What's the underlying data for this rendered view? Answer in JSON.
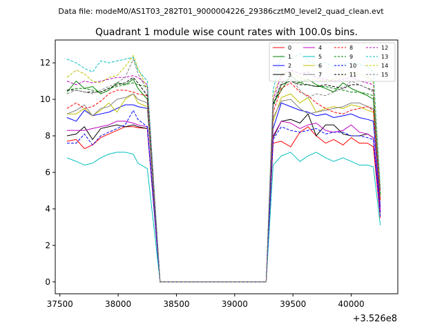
{
  "figure": {
    "suptitle": "Data file: modeM0/AS1T03_282T01_9000004226_29386cztM0_level2_quad_clean.evt"
  },
  "chart_data": {
    "type": "line",
    "title": "Quadrant 1 module wise count rates with 100.0s bins.",
    "xlabel": "",
    "ylabel": "",
    "x_offset_label": "+3.526e8",
    "xlim": [
      37460,
      40400
    ],
    "ylim": [
      -0.65,
      13.25
    ],
    "xticks": [
      37500,
      38000,
      38500,
      39000,
      39500,
      40000
    ],
    "yticks": [
      0,
      2,
      4,
      6,
      8,
      10,
      12
    ],
    "grid": false,
    "legend_position": "top-right",
    "legend_columns": 4,
    "x": [
      37560,
      37640,
      37710,
      37780,
      37850,
      37920,
      37990,
      38060,
      38130,
      38170,
      38250,
      38360,
      38700,
      39000,
      39270,
      39330,
      39400,
      39480,
      39560,
      39630,
      39700,
      39780,
      39850,
      39930,
      40000,
      40070,
      40140,
      40190,
      40250
    ],
    "series": [
      {
        "name": "0",
        "color": "#ff0000",
        "dash": "solid",
        "values": [
          7.7,
          7.8,
          7.3,
          7.5,
          7.9,
          8.1,
          8.3,
          8.5,
          8.5,
          8.45,
          8.4,
          0,
          0,
          0,
          0,
          7.6,
          7.7,
          7.4,
          8.2,
          8.5,
          8.0,
          7.6,
          7.8,
          7.5,
          7.9,
          7.6,
          7.6,
          7.4,
          3.5
        ]
      },
      {
        "name": "1",
        "color": "#008000",
        "dash": "solid",
        "values": [
          10.4,
          11.0,
          10.6,
          10.7,
          10.3,
          10.5,
          10.9,
          10.8,
          11.1,
          10.6,
          10.0,
          0,
          0,
          0,
          0,
          9.8,
          10.5,
          11.3,
          10.9,
          11.1,
          10.8,
          10.6,
          10.4,
          10.9,
          10.6,
          10.4,
          10.2,
          10.0,
          4.5
        ]
      },
      {
        "name": "2",
        "color": "#0000ff",
        "dash": "solid",
        "values": [
          9.0,
          8.8,
          9.4,
          9.1,
          9.2,
          9.3,
          9.5,
          9.7,
          9.7,
          9.6,
          9.5,
          0,
          0,
          0,
          0,
          8.4,
          9.8,
          9.6,
          9.4,
          9.3,
          9.1,
          9.2,
          9.0,
          9.1,
          9.2,
          9.0,
          8.9,
          8.8,
          4.1
        ]
      },
      {
        "name": "3",
        "color": "#000000",
        "dash": "solid",
        "values": [
          8.0,
          8.1,
          8.5,
          7.8,
          8.4,
          8.5,
          8.6,
          8.5,
          8.6,
          8.5,
          8.4,
          0,
          0,
          0,
          0,
          7.9,
          8.8,
          8.9,
          8.7,
          9.2,
          8.0,
          8.6,
          8.6,
          8.1,
          8.0,
          8.0,
          8.1,
          7.9,
          3.8
        ]
      },
      {
        "name": "4",
        "color": "#bf00bf",
        "dash": "solid",
        "values": [
          8.3,
          8.3,
          8.3,
          8.4,
          8.5,
          8.6,
          8.8,
          8.8,
          8.7,
          8.6,
          8.5,
          0,
          0,
          0,
          0,
          8.0,
          8.8,
          8.7,
          8.4,
          8.6,
          8.7,
          8.3,
          8.2,
          8.3,
          8.6,
          8.2,
          8.1,
          7.9,
          3.9
        ]
      },
      {
        "name": "5",
        "color": "#00bfbf",
        "dash": "solid",
        "values": [
          6.8,
          6.6,
          6.4,
          6.5,
          6.8,
          7.0,
          7.1,
          7.1,
          7.0,
          6.5,
          6.2,
          0,
          0,
          0,
          0,
          6.4,
          6.9,
          7.1,
          6.6,
          6.9,
          7.1,
          6.8,
          6.6,
          6.8,
          6.6,
          6.4,
          6.4,
          6.3,
          3.1
        ]
      },
      {
        "name": "6",
        "color": "#bfbf00",
        "dash": "solid",
        "values": [
          9.2,
          9.2,
          9.5,
          9.1,
          9.4,
          9.8,
          9.3,
          10.0,
          10.3,
          9.8,
          9.6,
          0,
          0,
          0,
          0,
          8.8,
          10.1,
          10.3,
          9.8,
          10.1,
          9.3,
          9.5,
          9.6,
          9.5,
          9.7,
          9.6,
          9.4,
          9.3,
          4.5
        ]
      },
      {
        "name": "7",
        "color": "#808080",
        "dash": "solid",
        "values": [
          9.2,
          9.4,
          9.7,
          9.1,
          9.5,
          9.6,
          10.0,
          10.1,
          10.3,
          10.0,
          9.8,
          0,
          0,
          0,
          0,
          9.0,
          9.9,
          10.0,
          9.5,
          9.2,
          9.3,
          9.4,
          9.5,
          9.6,
          9.8,
          9.8,
          9.6,
          9.5,
          4.6
        ]
      },
      {
        "name": "8",
        "color": "#ff0000",
        "dash": "dashed",
        "values": [
          9.5,
          9.8,
          9.5,
          9.6,
          9.9,
          10.3,
          10.5,
          10.5,
          10.4,
          10.3,
          10.2,
          0,
          0,
          0,
          0,
          9.3,
          10.6,
          10.9,
          10.4,
          10.2,
          9.8,
          9.5,
          9.3,
          9.2,
          9.4,
          9.5,
          9.6,
          9.4,
          4.4
        ]
      },
      {
        "name": "9",
        "color": "#008000",
        "dash": "dashed",
        "values": [
          10.5,
          10.6,
          10.6,
          10.5,
          10.4,
          10.6,
          10.7,
          10.8,
          10.9,
          10.8,
          10.7,
          0,
          0,
          0,
          0,
          9.6,
          10.8,
          11.0,
          10.9,
          10.8,
          10.7,
          10.7,
          10.6,
          10.5,
          10.4,
          10.4,
          10.3,
          10.2,
          4.8
        ]
      },
      {
        "name": "10",
        "color": "#0000ff",
        "dash": "dashed",
        "values": [
          7.6,
          7.6,
          8.1,
          7.5,
          8.0,
          8.2,
          8.4,
          8.6,
          9.4,
          8.9,
          8.5,
          0,
          0,
          0,
          0,
          7.8,
          8.5,
          8.3,
          8.2,
          8.3,
          8.4,
          8.1,
          8.2,
          8.2,
          8.0,
          8.0,
          7.9,
          7.8,
          3.6
        ]
      },
      {
        "name": "11",
        "color": "#000000",
        "dash": "dashed",
        "values": [
          10.5,
          10.5,
          10.4,
          10.4,
          10.4,
          10.6,
          10.8,
          10.9,
          11.2,
          10.9,
          10.2,
          0,
          0,
          0,
          0,
          9.7,
          10.8,
          11.0,
          10.8,
          10.8,
          10.7,
          10.8,
          10.7,
          10.6,
          10.8,
          10.8,
          10.6,
          10.5,
          5.0
        ]
      },
      {
        "name": "12",
        "color": "#bf00bf",
        "dash": "dashed",
        "values": [
          11.0,
          10.8,
          11.0,
          10.9,
          11.0,
          11.1,
          11.2,
          11.2,
          11.3,
          11.2,
          10.8,
          0,
          0,
          0,
          0,
          10.0,
          11.3,
          11.6,
          11.4,
          11.5,
          11.2,
          11.1,
          11.0,
          11.1,
          11.2,
          11.0,
          10.9,
          10.8,
          5.1
        ]
      },
      {
        "name": "13",
        "color": "#00bfbf",
        "dash": "dashed",
        "values": [
          12.2,
          12.0,
          11.7,
          11.5,
          12.1,
          12.0,
          12.1,
          12.2,
          12.3,
          11.6,
          11.0,
          0,
          0,
          0,
          0,
          10.5,
          12.4,
          12.2,
          12.5,
          12.1,
          11.9,
          12.0,
          11.8,
          11.9,
          12.0,
          11.9,
          11.8,
          11.5,
          5.2
        ]
      },
      {
        "name": "14",
        "color": "#bfbf00",
        "dash": "dashed",
        "values": [
          11.2,
          11.6,
          11.4,
          11.0,
          10.9,
          11.2,
          11.3,
          11.8,
          12.4,
          11.7,
          10.6,
          0,
          0,
          0,
          0,
          10.2,
          11.4,
          11.5,
          11.2,
          11.0,
          11.1,
          11.0,
          11.1,
          11.3,
          11.5,
          11.4,
          11.2,
          11.0,
          5.0
        ]
      },
      {
        "name": "15",
        "color": "#808080",
        "dash": "dashed",
        "values": [
          10.3,
          10.5,
          10.4,
          10.3,
          10.5,
          10.7,
          10.9,
          11.2,
          12.2,
          11.4,
          10.5,
          0,
          0,
          0,
          0,
          9.9,
          10.9,
          11.2,
          10.5,
          10.1,
          10.3,
          10.2,
          10.4,
          10.6,
          11.0,
          10.8,
          10.6,
          10.4,
          4.9
        ]
      }
    ]
  }
}
